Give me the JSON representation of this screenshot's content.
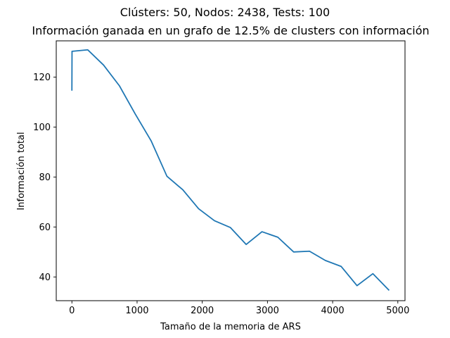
{
  "chart_data": {
    "type": "line",
    "suptitle": "Clústers: 50, Nodos: 2438, Tests: 100",
    "title": "Información ganada en un grafo de 12.5% de clusters con información",
    "xlabel": "Tamaño de la memoria de ARS",
    "ylabel": "Información total",
    "xlim": [
      -240,
      5110
    ],
    "ylim": [
      30.5,
      134.5
    ],
    "xticks": [
      0,
      1000,
      2000,
      3000,
      4000,
      5000
    ],
    "xtick_labels": [
      "0",
      "1000",
      "2000",
      "3000",
      "4000",
      "5000"
    ],
    "yticks": [
      40,
      60,
      80,
      100,
      120
    ],
    "ytick_labels": [
      "40",
      "60",
      "80",
      "100",
      "120"
    ],
    "grid": false,
    "series": [
      {
        "color": "#1f77b4",
        "points": [
          [
            0,
            114.8
          ],
          [
            2,
            130.3
          ],
          [
            243,
            130.9
          ],
          [
            486,
            124.8
          ],
          [
            729,
            116.5
          ],
          [
            972,
            105.2
          ],
          [
            1215,
            94.5
          ],
          [
            1458,
            80.3
          ],
          [
            1701,
            74.9
          ],
          [
            1944,
            67.3
          ],
          [
            2187,
            62.5
          ],
          [
            2430,
            59.8
          ],
          [
            2673,
            53.0
          ],
          [
            2916,
            58.1
          ],
          [
            3159,
            55.9
          ],
          [
            3402,
            50.0
          ],
          [
            3645,
            50.3
          ],
          [
            3888,
            46.6
          ],
          [
            4131,
            44.2
          ],
          [
            4374,
            36.5
          ],
          [
            4617,
            41.3
          ],
          [
            4860,
            34.8
          ]
        ]
      }
    ]
  }
}
